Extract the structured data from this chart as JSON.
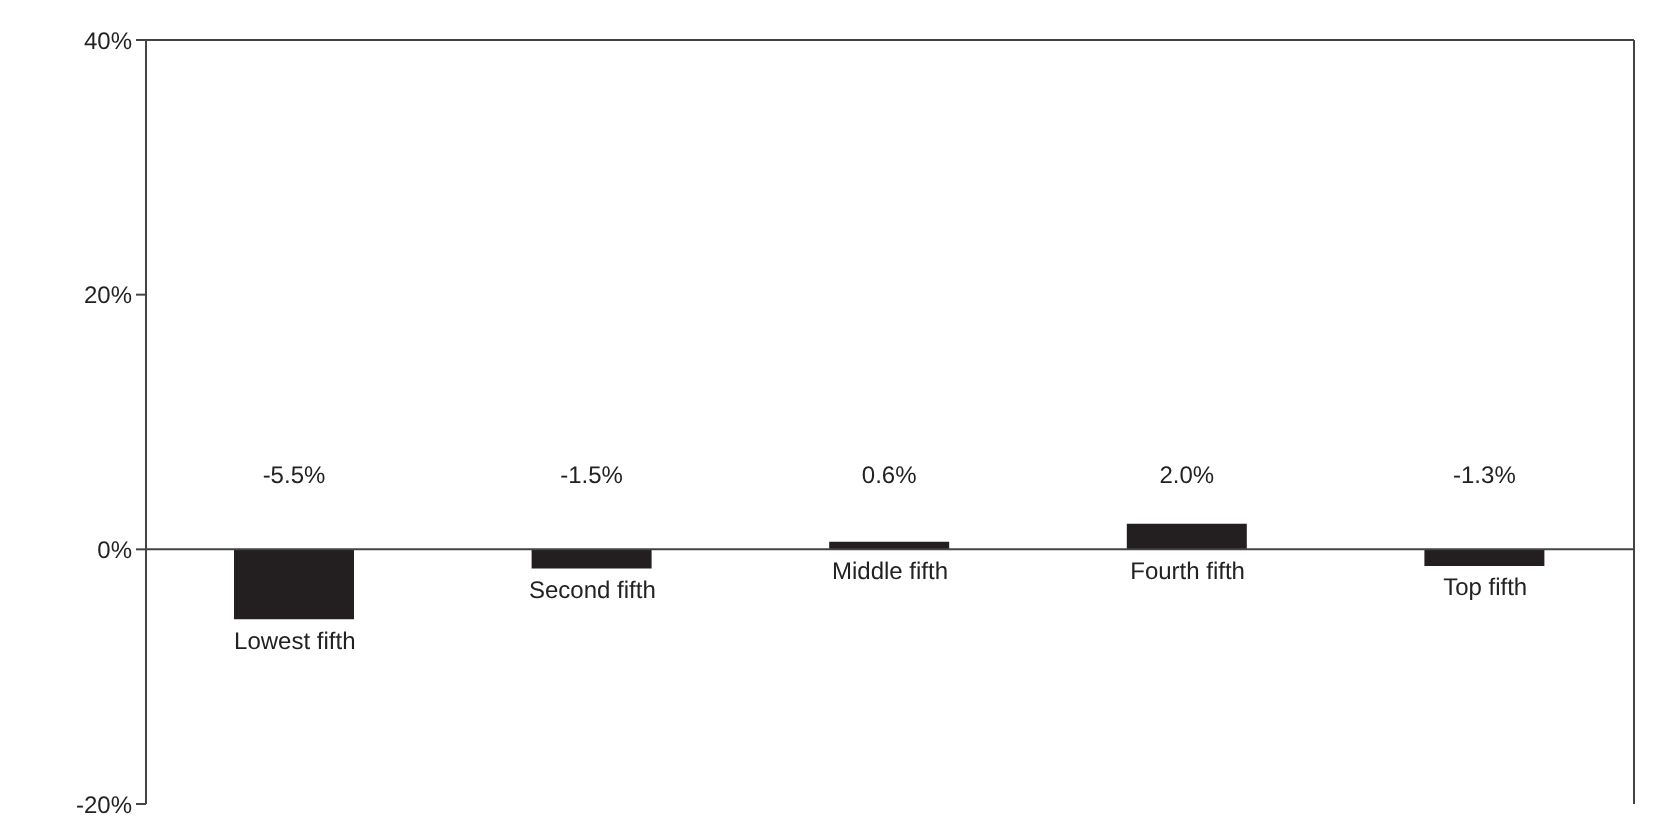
{
  "chart_data": {
    "type": "bar",
    "categories": [
      "Lowest fifth",
      "Second fifth",
      "Middle fifth",
      "Fourth fifth",
      "Top fifth"
    ],
    "values": [
      -5.5,
      -1.5,
      0.6,
      2.0,
      -1.3
    ],
    "color": "#231f20",
    "value_labels": [
      "-5.5%",
      "-1.5%",
      "0.6%",
      "2.0%",
      "-1.3%"
    ],
    "ylim": [
      -20,
      40
    ],
    "yticks": [
      {
        "value": -20,
        "label": "-20%"
      },
      {
        "value": 0,
        "label": "0%"
      },
      {
        "value": 20,
        "label": "20%"
      },
      {
        "value": 40,
        "label": "40%"
      }
    ],
    "grid": false
  }
}
